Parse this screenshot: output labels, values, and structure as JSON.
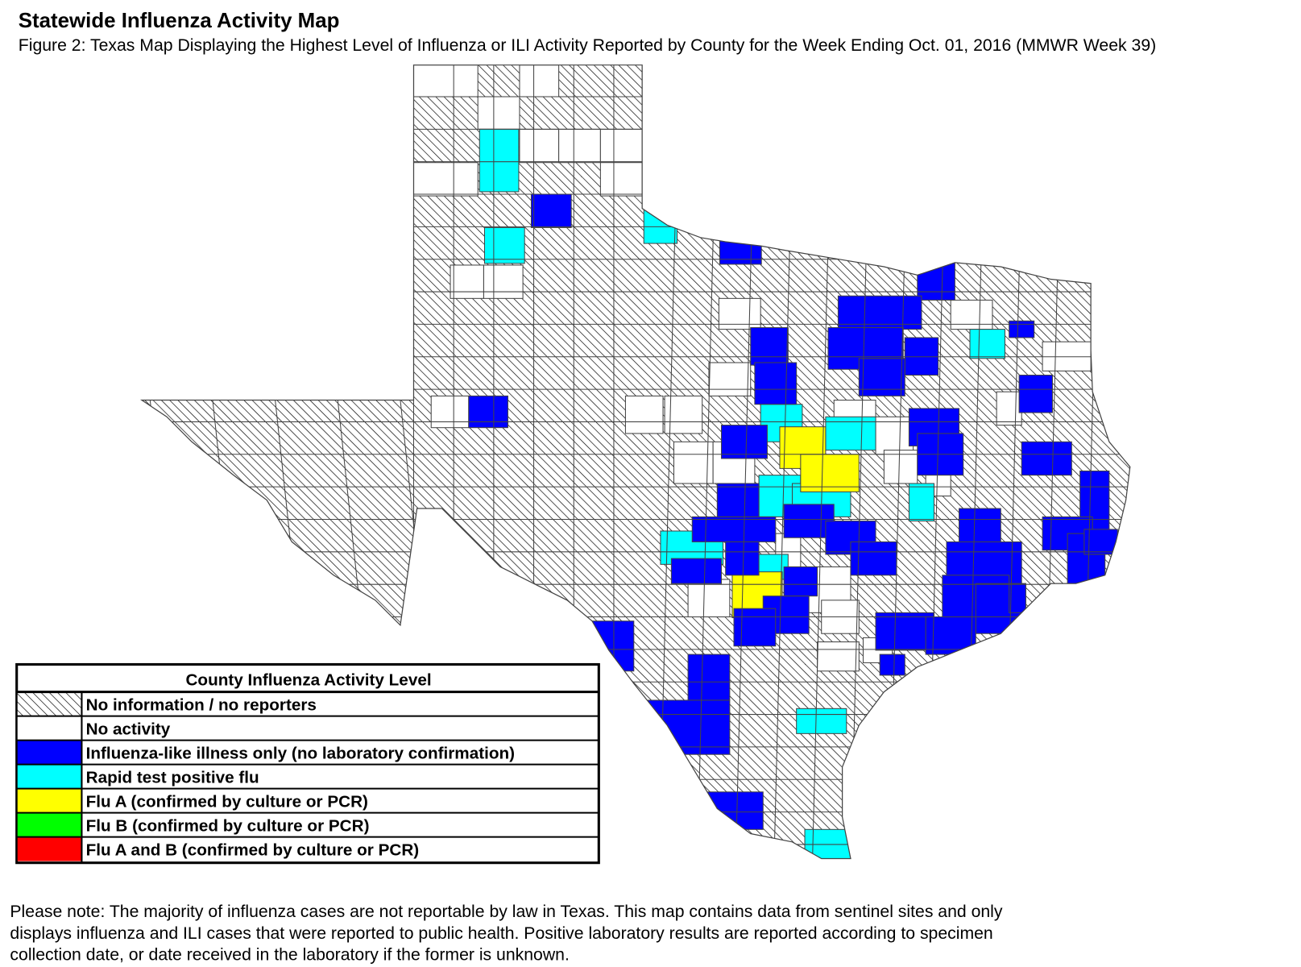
{
  "title": "Statewide Influenza Activity Map",
  "subtitle": "Figure 2: Texas Map Displaying the Highest Level of Influenza or ILI Activity Reported by County for the Week Ending Oct. 01, 2016 (MMWR Week 39)",
  "legend": {
    "title": "County Influenza Activity Level",
    "items": [
      {
        "label": "No information / no reporters",
        "color": "hatched"
      },
      {
        "label": "No activity",
        "color": "#ffffff"
      },
      {
        "label": "Influenza-like illness only (no laboratory confirmation)",
        "color": "#0000ff"
      },
      {
        "label": "Rapid test positive flu",
        "color": "#00ffff"
      },
      {
        "label": "Flu A (confirmed by culture or PCR)",
        "color": "#ffff00"
      },
      {
        "label": "Flu B (confirmed by culture or PCR)",
        "color": "#00ff00"
      },
      {
        "label": "Flu A and B (confirmed by culture or PCR)",
        "color": "#ff0000"
      }
    ]
  },
  "note": [
    "Please note: The majority of influenza cases are not reportable by law in Texas. This map contains data from sentinel sites and only",
    "displays influenza and ILI cases that were reported to public health. Positive laboratory results are reported according to specimen",
    "collection date, or date received in the laboratory if the former is unknown."
  ]
}
